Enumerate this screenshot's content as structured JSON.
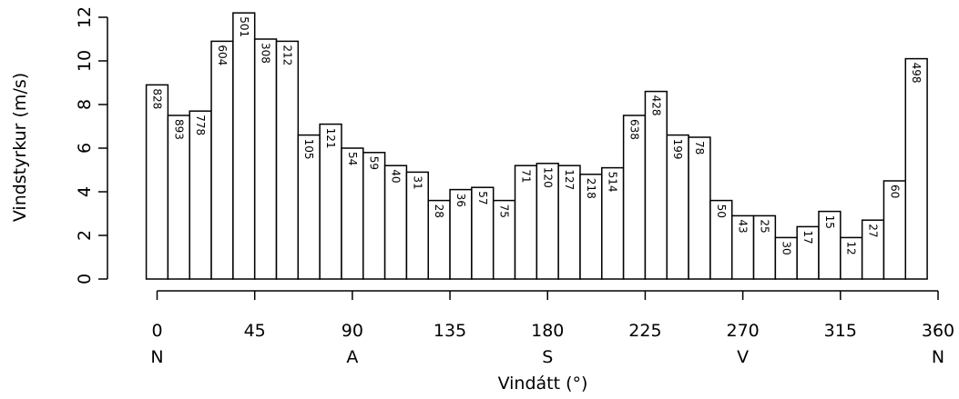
{
  "chart_data": {
    "type": "bar",
    "ylabel": "Vindstyrkur (m/s)",
    "xlabel": "Vindátt (°)",
    "ylim": [
      0,
      12
    ],
    "xlim": [
      0,
      360
    ],
    "bin_width": 10,
    "y_ticks": [
      0,
      2,
      4,
      6,
      8,
      10,
      12
    ],
    "x_ticks": [
      0,
      45,
      90,
      135,
      180,
      225,
      270,
      315,
      360
    ],
    "x_tick_labels": [
      "0",
      "45",
      "90",
      "135",
      "180",
      "225",
      "270",
      "315",
      "360"
    ],
    "compass_labels": [
      {
        "at": 0,
        "text": "N"
      },
      {
        "at": 90,
        "text": "A"
      },
      {
        "at": 180,
        "text": "S"
      },
      {
        "at": 270,
        "text": "V"
      },
      {
        "at": 360,
        "text": "N"
      }
    ],
    "bar_color": "#ffffff",
    "bar_edge_color": "#000000",
    "bars": [
      {
        "start": -5,
        "value": 8.9,
        "count": "828"
      },
      {
        "start": 5,
        "value": 7.5,
        "count": "893"
      },
      {
        "start": 15,
        "value": 7.7,
        "count": "778"
      },
      {
        "start": 25,
        "value": 10.9,
        "count": "604"
      },
      {
        "start": 35,
        "value": 12.2,
        "count": "501"
      },
      {
        "start": 45,
        "value": 11.0,
        "count": "308"
      },
      {
        "start": 55,
        "value": 10.9,
        "count": "212"
      },
      {
        "start": 65,
        "value": 6.6,
        "count": "105"
      },
      {
        "start": 75,
        "value": 7.1,
        "count": "121"
      },
      {
        "start": 85,
        "value": 6.0,
        "count": "54"
      },
      {
        "start": 95,
        "value": 5.8,
        "count": "59"
      },
      {
        "start": 105,
        "value": 5.2,
        "count": "40"
      },
      {
        "start": 115,
        "value": 4.9,
        "count": "31"
      },
      {
        "start": 125,
        "value": 3.6,
        "count": "28"
      },
      {
        "start": 135,
        "value": 4.1,
        "count": "36"
      },
      {
        "start": 145,
        "value": 4.2,
        "count": "57"
      },
      {
        "start": 155,
        "value": 3.6,
        "count": "75"
      },
      {
        "start": 165,
        "value": 5.2,
        "count": "71"
      },
      {
        "start": 175,
        "value": 5.3,
        "count": "120"
      },
      {
        "start": 185,
        "value": 5.2,
        "count": "127"
      },
      {
        "start": 195,
        "value": 4.8,
        "count": "218"
      },
      {
        "start": 205,
        "value": 5.1,
        "count": "514"
      },
      {
        "start": 215,
        "value": 7.5,
        "count": "638"
      },
      {
        "start": 225,
        "value": 8.6,
        "count": "428"
      },
      {
        "start": 235,
        "value": 6.6,
        "count": "199"
      },
      {
        "start": 245,
        "value": 6.5,
        "count": "78"
      },
      {
        "start": 255,
        "value": 3.6,
        "count": "50"
      },
      {
        "start": 265,
        "value": 2.9,
        "count": "43"
      },
      {
        "start": 275,
        "value": 2.9,
        "count": "25"
      },
      {
        "start": 285,
        "value": 1.9,
        "count": "30"
      },
      {
        "start": 295,
        "value": 2.4,
        "count": "17"
      },
      {
        "start": 305,
        "value": 3.1,
        "count": "15"
      },
      {
        "start": 315,
        "value": 1.9,
        "count": "12"
      },
      {
        "start": 325,
        "value": 2.7,
        "count": "27"
      },
      {
        "start": 335,
        "value": 4.5,
        "count": "60"
      },
      {
        "start": 345,
        "value": 10.1,
        "count": "498"
      }
    ]
  }
}
